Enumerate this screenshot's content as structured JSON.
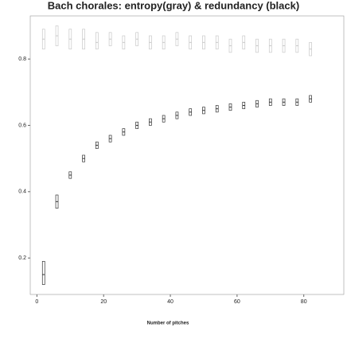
{
  "chart_data": {
    "type": "box",
    "title": "Bach chorales: entropy(gray) & redundancy (black)",
    "x_label": "Number of pitches",
    "x": [
      2,
      6,
      10,
      14,
      18,
      22,
      26,
      30,
      34,
      38,
      42,
      46,
      50,
      54,
      58,
      62,
      66,
      70,
      74,
      78,
      82
    ],
    "series": [
      {
        "name": "entropy",
        "color": "#c8c8c8",
        "values": [
          0.86,
          0.87,
          0.86,
          0.86,
          0.85,
          0.86,
          0.85,
          0.86,
          0.85,
          0.85,
          0.86,
          0.85,
          0.85,
          0.85,
          0.84,
          0.85,
          0.84,
          0.84,
          0.84,
          0.84,
          0.83
        ],
        "q1": [
          0.83,
          0.84,
          0.83,
          0.83,
          0.83,
          0.84,
          0.83,
          0.84,
          0.83,
          0.83,
          0.84,
          0.83,
          0.83,
          0.83,
          0.82,
          0.83,
          0.82,
          0.82,
          0.82,
          0.82,
          0.81
        ],
        "q3": [
          0.89,
          0.9,
          0.89,
          0.89,
          0.88,
          0.88,
          0.87,
          0.88,
          0.87,
          0.87,
          0.88,
          0.87,
          0.87,
          0.87,
          0.86,
          0.87,
          0.86,
          0.86,
          0.86,
          0.86,
          0.85
        ]
      },
      {
        "name": "redundancy",
        "color": "#333333",
        "values": [
          0.15,
          0.37,
          0.45,
          0.5,
          0.54,
          0.56,
          0.58,
          0.6,
          0.61,
          0.62,
          0.63,
          0.64,
          0.645,
          0.65,
          0.655,
          0.66,
          0.665,
          0.67,
          0.67,
          0.67,
          0.68
        ],
        "q1": [
          0.12,
          0.35,
          0.44,
          0.49,
          0.53,
          0.55,
          0.57,
          0.59,
          0.6,
          0.61,
          0.62,
          0.63,
          0.635,
          0.64,
          0.645,
          0.65,
          0.655,
          0.66,
          0.66,
          0.66,
          0.67
        ],
        "q3": [
          0.19,
          0.39,
          0.46,
          0.51,
          0.55,
          0.57,
          0.59,
          0.61,
          0.62,
          0.63,
          0.64,
          0.65,
          0.655,
          0.66,
          0.665,
          0.67,
          0.675,
          0.68,
          0.68,
          0.68,
          0.69
        ]
      }
    ],
    "xlim": [
      -2,
      92
    ],
    "xticks": [
      0,
      20,
      40,
      60,
      80
    ],
    "ylim": [
      0.09,
      0.93
    ],
    "yticks": [
      0.2,
      0.4,
      0.6,
      0.8
    ],
    "grid": false
  }
}
